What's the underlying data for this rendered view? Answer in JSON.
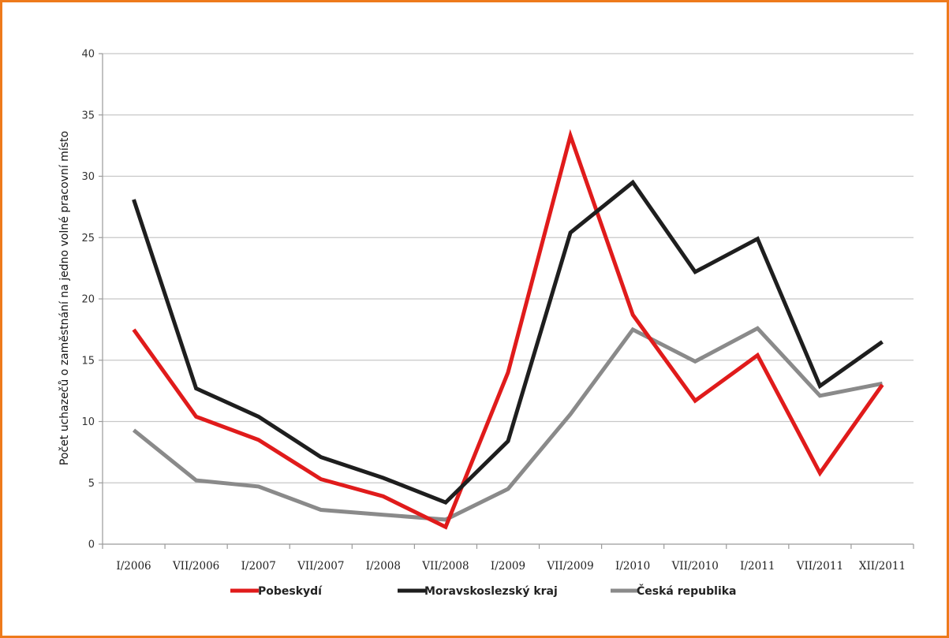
{
  "chart_data": {
    "type": "line",
    "title": "",
    "xlabel": "",
    "ylabel": "Počet uchazečů o zaměstnání na jedno volné pracovní místo",
    "ylim": [
      0,
      40
    ],
    "yticks": [
      0,
      5,
      10,
      15,
      20,
      25,
      30,
      35,
      40
    ],
    "grid": true,
    "legend_position": "bottom",
    "categories": [
      "I/2006",
      "VII/2006",
      "I/2007",
      "VII/2007",
      "I/2008",
      "VII/2008",
      "I/2009",
      "VII/2009",
      "I/2010",
      "VII/2010",
      "I/2011",
      "VII/2011",
      "XII/2011"
    ],
    "series": [
      {
        "name": "Pobeskydí",
        "color": "#e01b1b",
        "values": [
          17.5,
          10.4,
          8.5,
          5.3,
          3.9,
          1.4,
          14.0,
          33.3,
          18.7,
          11.7,
          15.4,
          5.8,
          13.0
        ]
      },
      {
        "name": "Moravskoslezský kraj",
        "color": "#1e1e1e",
        "values": [
          28.1,
          12.7,
          10.4,
          7.1,
          5.4,
          3.4,
          8.4,
          25.4,
          29.5,
          22.2,
          24.9,
          12.9,
          16.5
        ]
      },
      {
        "name": "Česká republika",
        "color": "#8a8a8a",
        "values": [
          9.3,
          5.2,
          4.7,
          2.8,
          2.4,
          2.0,
          4.5,
          10.6,
          17.5,
          14.9,
          17.6,
          12.1,
          13.1
        ]
      }
    ]
  }
}
